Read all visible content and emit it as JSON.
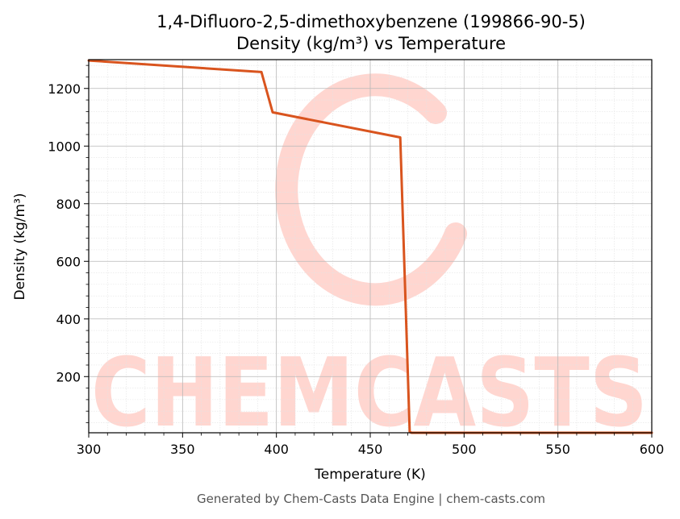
{
  "chart_data": {
    "type": "line",
    "title": "1,4-Difluoro-2,5-dimethoxybenzene (199866-90-5)",
    "subtitle": "Density (kg/m³) vs Temperature",
    "xlabel": "Temperature (K)",
    "ylabel": "Density (kg/m³)",
    "xlim": [
      300,
      600
    ],
    "ylim": [
      5,
      1300
    ],
    "xticks": [
      300,
      350,
      400,
      450,
      500,
      550,
      600
    ],
    "yticks": [
      200,
      400,
      600,
      800,
      1000,
      1200
    ],
    "grid": true,
    "series": [
      {
        "color": "#d9541e",
        "x": [
          300,
          392,
          398,
          466,
          471,
          472,
          600
        ],
        "y": [
          1297,
          1257,
          1117,
          1030,
          8,
          5,
          5
        ]
      }
    ]
  },
  "watermark": {
    "text": "CHEMCASTS",
    "color": "#ffd6d0"
  },
  "footer": "Generated by Chem-Casts Data Engine | chem-casts.com"
}
